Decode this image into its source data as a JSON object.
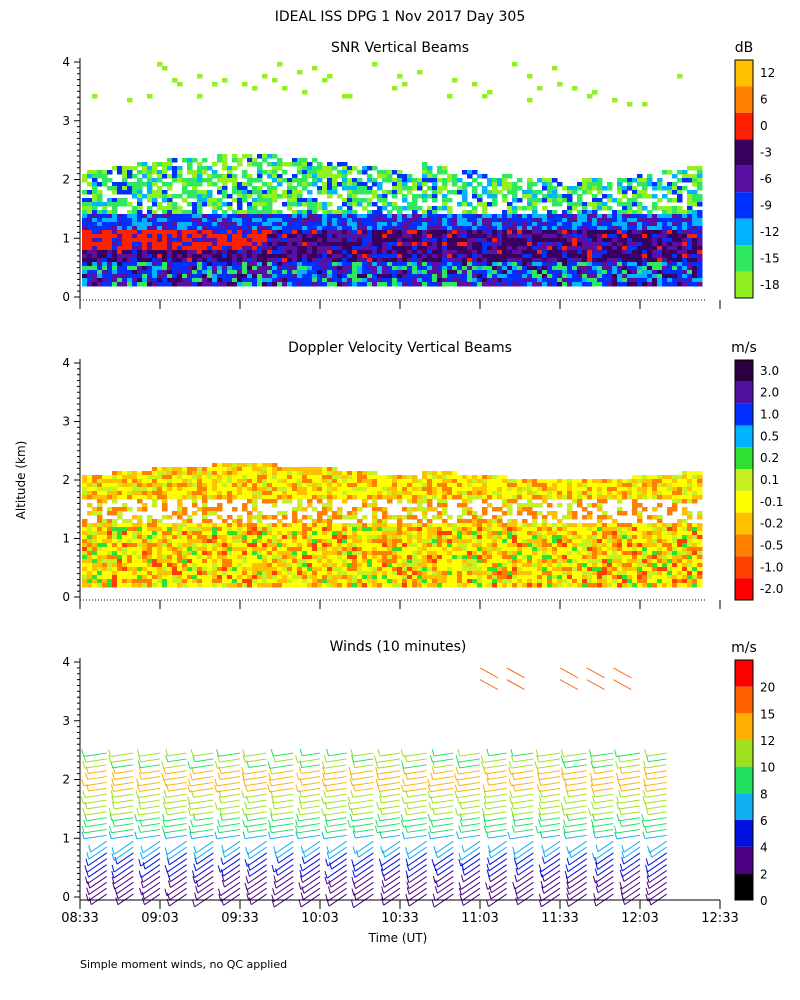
{
  "figure": {
    "title": "IDEAL ISS DPG    1 Nov 2017 Day 305",
    "footnote": "Simple moment winds, no QC applied",
    "ylabel": "Altitude (km)",
    "xlabel": "Time (UT)"
  },
  "chart_data": [
    {
      "type": "heatmap",
      "title": "SNR Vertical Beams",
      "ylim": [
        0,
        4
      ],
      "yticks": [
        "0",
        "1",
        "2",
        "3",
        "4"
      ],
      "x_time_range": [
        "08:33",
        "12:33"
      ],
      "colorbar": {
        "unit": "dB",
        "labels": [
          "12",
          "6",
          "0",
          "-3",
          "-6",
          "-9",
          "-12",
          "-15",
          "-18"
        ],
        "colors": [
          "#ffc000",
          "#ff8000",
          "#ff2000",
          "#3a0060",
          "#5a10a0",
          "#0030ff",
          "#00b4ff",
          "#30e860",
          "#90f020"
        ]
      }
    },
    {
      "type": "heatmap",
      "title": "Doppler Velocity Vertical Beams",
      "ylim": [
        0,
        4
      ],
      "yticks": [
        "0",
        "1",
        "2",
        "3",
        "4"
      ],
      "x_time_range": [
        "08:33",
        "12:33"
      ],
      "colorbar": {
        "unit": "m/s",
        "labels": [
          "3.0",
          "2.0",
          "1.0",
          "0.5",
          "0.2",
          "0.1",
          "-0.1",
          "-0.2",
          "-0.5",
          "-1.0",
          "-2.0"
        ],
        "colors": [
          "#2a0040",
          "#5010a0",
          "#0030ff",
          "#00b4ff",
          "#30e030",
          "#c8f020",
          "#ffff00",
          "#ffc000",
          "#ff8000",
          "#ff4000",
          "#ff0000"
        ]
      }
    },
    {
      "type": "scatter",
      "title": "Winds (10 minutes)",
      "ylim": [
        0,
        4
      ],
      "yticks": [
        "0",
        "1",
        "2",
        "3",
        "4"
      ],
      "xticks": [
        "08:33",
        "09:03",
        "09:33",
        "10:03",
        "10:33",
        "11:03",
        "11:33",
        "12:03",
        "12:33"
      ],
      "profile_times": [
        "08:43",
        "08:53",
        "09:03",
        "09:13",
        "09:23",
        "09:33",
        "09:43",
        "09:53",
        "10:03",
        "10:13",
        "10:23",
        "10:33",
        "10:43",
        "10:53",
        "11:03",
        "11:13",
        "11:23",
        "11:33",
        "11:43",
        "11:53",
        "12:03",
        "12:13"
      ],
      "colorbar": {
        "unit": "m/s",
        "labels": [
          "20",
          "15",
          "12",
          "10",
          "8",
          "6",
          "4",
          "2",
          "0"
        ],
        "colors": [
          "#ff0000",
          "#ff6000",
          "#ffb000",
          "#a0e020",
          "#20e060",
          "#10b0f0",
          "#0010e0",
          "#4a0080",
          "#000000"
        ]
      }
    }
  ]
}
